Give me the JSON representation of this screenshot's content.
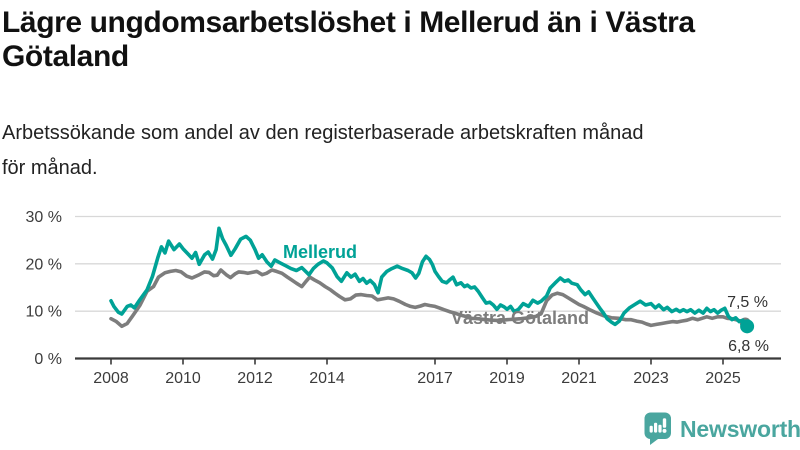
{
  "header": {
    "title": "Lägre ungdomsarbetslöshet i Mellerud än i Västra\nGötaland",
    "subtitle": "Arbetssökande som andel av den registerbaserade arbetskraften månad\nför månad."
  },
  "footer": {
    "brand": "Newsworthy",
    "brand_color": "#4aa69f"
  },
  "chart_data": {
    "type": "line",
    "title": "Lägre ungdomsarbetslöshet i Mellerud än i Västra Götaland",
    "subtitle": "Arbetssökande som andel av den registerbaserade arbetskraften månad för månad.",
    "xlabel": "",
    "ylabel": "",
    "xlim": [
      2007.9,
      2025.9
    ],
    "ylim": [
      0,
      30
    ],
    "grid": "horizontal",
    "y_ticks": [
      {
        "value": 0,
        "label": "0 %"
      },
      {
        "value": 10,
        "label": "10 %"
      },
      {
        "value": 20,
        "label": "20 %"
      },
      {
        "value": 30,
        "label": "30 %"
      }
    ],
    "x_ticks": [
      {
        "year": 2008,
        "label": "2008"
      },
      {
        "year": 2010,
        "label": "2010"
      },
      {
        "year": 2012,
        "label": "2012"
      },
      {
        "year": 2014,
        "label": "2014"
      },
      {
        "year": 2017,
        "label": "2017"
      },
      {
        "year": 2019,
        "label": "2019"
      },
      {
        "year": 2021,
        "label": "2021"
      },
      {
        "year": 2023,
        "label": "2023"
      },
      {
        "year": 2025,
        "label": "2025"
      }
    ],
    "series": [
      {
        "name": "Mellerud",
        "color": "#00a296",
        "end_label": "6,8 %",
        "end_value": 6.8,
        "end_dot": true,
        "points": [
          [
            2008.0,
            12.2
          ],
          [
            2008.08,
            11.0
          ],
          [
            2008.2,
            9.8
          ],
          [
            2008.3,
            9.4
          ],
          [
            2008.45,
            11.0
          ],
          [
            2008.55,
            11.3
          ],
          [
            2008.65,
            10.7
          ],
          [
            2008.8,
            12.4
          ],
          [
            2009.0,
            14.5
          ],
          [
            2009.15,
            17.3
          ],
          [
            2009.3,
            21.3
          ],
          [
            2009.4,
            23.6
          ],
          [
            2009.5,
            22.3
          ],
          [
            2009.6,
            24.8
          ],
          [
            2009.75,
            23.0
          ],
          [
            2009.9,
            24.2
          ],
          [
            2010.0,
            23.2
          ],
          [
            2010.15,
            22.0
          ],
          [
            2010.25,
            21.2
          ],
          [
            2010.35,
            22.4
          ],
          [
            2010.45,
            19.9
          ],
          [
            2010.6,
            21.9
          ],
          [
            2010.7,
            22.5
          ],
          [
            2010.82,
            21.0
          ],
          [
            2010.92,
            23.0
          ],
          [
            2011.0,
            27.5
          ],
          [
            2011.1,
            25.3
          ],
          [
            2011.2,
            23.9
          ],
          [
            2011.33,
            21.8
          ],
          [
            2011.45,
            23.2
          ],
          [
            2011.6,
            25.2
          ],
          [
            2011.75,
            25.8
          ],
          [
            2011.87,
            25.0
          ],
          [
            2012.0,
            23.0
          ],
          [
            2012.1,
            21.2
          ],
          [
            2012.2,
            21.9
          ],
          [
            2012.33,
            20.4
          ],
          [
            2012.45,
            19.5
          ],
          [
            2012.55,
            20.8
          ],
          [
            2012.7,
            20.2
          ],
          [
            2012.85,
            19.6
          ],
          [
            2013.0,
            19.0
          ],
          [
            2013.15,
            18.6
          ],
          [
            2013.3,
            19.2
          ],
          [
            2013.5,
            17.7
          ],
          [
            2013.62,
            19.0
          ],
          [
            2013.75,
            19.9
          ],
          [
            2013.9,
            20.6
          ],
          [
            2014.0,
            20.2
          ],
          [
            2014.15,
            19.1
          ],
          [
            2014.28,
            17.3
          ],
          [
            2014.4,
            16.3
          ],
          [
            2014.55,
            18.1
          ],
          [
            2014.67,
            17.2
          ],
          [
            2014.78,
            17.8
          ],
          [
            2014.9,
            16.3
          ],
          [
            2015.0,
            16.9
          ],
          [
            2015.1,
            15.9
          ],
          [
            2015.2,
            16.5
          ],
          [
            2015.32,
            15.6
          ],
          [
            2015.42,
            13.9
          ],
          [
            2015.52,
            17.2
          ],
          [
            2015.66,
            18.4
          ],
          [
            2015.8,
            19.0
          ],
          [
            2015.95,
            19.5
          ],
          [
            2016.1,
            19.0
          ],
          [
            2016.25,
            18.6
          ],
          [
            2016.36,
            18.1
          ],
          [
            2016.46,
            17.0
          ],
          [
            2016.55,
            18.0
          ],
          [
            2016.65,
            20.4
          ],
          [
            2016.75,
            21.6
          ],
          [
            2016.85,
            20.9
          ],
          [
            2016.93,
            19.8
          ],
          [
            2017.0,
            18.4
          ],
          [
            2017.1,
            17.3
          ],
          [
            2017.2,
            16.3
          ],
          [
            2017.32,
            16.0
          ],
          [
            2017.42,
            16.7
          ],
          [
            2017.5,
            17.2
          ],
          [
            2017.6,
            15.6
          ],
          [
            2017.72,
            16.0
          ],
          [
            2017.82,
            15.2
          ],
          [
            2017.9,
            15.5
          ],
          [
            2018.0,
            14.9
          ],
          [
            2018.1,
            15.1
          ],
          [
            2018.2,
            14.2
          ],
          [
            2018.32,
            12.8
          ],
          [
            2018.42,
            11.7
          ],
          [
            2018.52,
            11.9
          ],
          [
            2018.62,
            11.3
          ],
          [
            2018.72,
            10.4
          ],
          [
            2018.82,
            11.3
          ],
          [
            2018.92,
            10.9
          ],
          [
            2019.0,
            10.4
          ],
          [
            2019.1,
            11.0
          ],
          [
            2019.2,
            9.9
          ],
          [
            2019.32,
            10.4
          ],
          [
            2019.45,
            11.6
          ],
          [
            2019.6,
            11.0
          ],
          [
            2019.72,
            12.3
          ],
          [
            2019.85,
            11.7
          ],
          [
            2019.95,
            12.1
          ],
          [
            2020.1,
            13.2
          ],
          [
            2020.2,
            14.9
          ],
          [
            2020.33,
            15.9
          ],
          [
            2020.48,
            17.0
          ],
          [
            2020.6,
            16.3
          ],
          [
            2020.7,
            16.6
          ],
          [
            2020.8,
            15.9
          ],
          [
            2020.95,
            15.6
          ],
          [
            2021.05,
            14.5
          ],
          [
            2021.17,
            13.5
          ],
          [
            2021.27,
            14.1
          ],
          [
            2021.38,
            12.8
          ],
          [
            2021.48,
            11.7
          ],
          [
            2021.58,
            10.6
          ],
          [
            2021.68,
            9.6
          ],
          [
            2021.78,
            8.4
          ],
          [
            2021.9,
            7.7
          ],
          [
            2022.0,
            7.2
          ],
          [
            2022.12,
            7.9
          ],
          [
            2022.25,
            9.6
          ],
          [
            2022.4,
            10.7
          ],
          [
            2022.55,
            11.4
          ],
          [
            2022.7,
            12.1
          ],
          [
            2022.85,
            11.3
          ],
          [
            2023.0,
            11.6
          ],
          [
            2023.12,
            10.7
          ],
          [
            2023.22,
            11.3
          ],
          [
            2023.35,
            10.3
          ],
          [
            2023.45,
            10.8
          ],
          [
            2023.58,
            9.9
          ],
          [
            2023.7,
            10.4
          ],
          [
            2023.8,
            9.9
          ],
          [
            2023.9,
            10.3
          ],
          [
            2024.0,
            9.9
          ],
          [
            2024.1,
            10.3
          ],
          [
            2024.22,
            9.6
          ],
          [
            2024.33,
            10.2
          ],
          [
            2024.45,
            9.6
          ],
          [
            2024.55,
            10.6
          ],
          [
            2024.65,
            9.9
          ],
          [
            2024.75,
            10.3
          ],
          [
            2024.85,
            9.6
          ],
          [
            2024.95,
            10.2
          ],
          [
            2025.05,
            10.6
          ],
          [
            2025.15,
            8.9
          ],
          [
            2025.25,
            8.2
          ],
          [
            2025.35,
            8.6
          ],
          [
            2025.45,
            7.8
          ],
          [
            2025.55,
            8.1
          ],
          [
            2025.67,
            6.8
          ]
        ]
      },
      {
        "name": "Västra Götaland",
        "color": "#7d7d7d",
        "end_label": "7,5 %",
        "end_value": 7.5,
        "end_dot": true,
        "points": [
          [
            2008.0,
            8.4
          ],
          [
            2008.15,
            7.8
          ],
          [
            2008.3,
            6.8
          ],
          [
            2008.45,
            7.4
          ],
          [
            2008.6,
            9.0
          ],
          [
            2008.8,
            11.2
          ],
          [
            2009.0,
            14.2
          ],
          [
            2009.18,
            15.2
          ],
          [
            2009.32,
            17.2
          ],
          [
            2009.5,
            18.1
          ],
          [
            2009.65,
            18.4
          ],
          [
            2009.8,
            18.6
          ],
          [
            2009.95,
            18.3
          ],
          [
            2010.1,
            17.4
          ],
          [
            2010.25,
            17.0
          ],
          [
            2010.45,
            17.7
          ],
          [
            2010.6,
            18.3
          ],
          [
            2010.72,
            18.2
          ],
          [
            2010.85,
            17.5
          ],
          [
            2010.95,
            17.6
          ],
          [
            2011.05,
            18.7
          ],
          [
            2011.2,
            17.7
          ],
          [
            2011.32,
            17.1
          ],
          [
            2011.45,
            17.9
          ],
          [
            2011.55,
            18.3
          ],
          [
            2011.68,
            18.2
          ],
          [
            2011.8,
            18.0
          ],
          [
            2011.92,
            18.2
          ],
          [
            2012.05,
            18.4
          ],
          [
            2012.2,
            17.7
          ],
          [
            2012.32,
            18.0
          ],
          [
            2012.47,
            18.7
          ],
          [
            2012.6,
            18.4
          ],
          [
            2012.75,
            18.0
          ],
          [
            2012.9,
            17.2
          ],
          [
            2013.0,
            16.7
          ],
          [
            2013.15,
            15.9
          ],
          [
            2013.3,
            15.2
          ],
          [
            2013.42,
            16.3
          ],
          [
            2013.52,
            17.2
          ],
          [
            2013.65,
            16.6
          ],
          [
            2013.8,
            16.0
          ],
          [
            2013.95,
            15.2
          ],
          [
            2014.1,
            14.5
          ],
          [
            2014.22,
            13.8
          ],
          [
            2014.35,
            13.1
          ],
          [
            2014.5,
            12.4
          ],
          [
            2014.65,
            12.6
          ],
          [
            2014.8,
            13.4
          ],
          [
            2014.95,
            13.5
          ],
          [
            2015.1,
            13.3
          ],
          [
            2015.25,
            13.2
          ],
          [
            2015.4,
            12.4
          ],
          [
            2015.55,
            12.6
          ],
          [
            2015.7,
            12.8
          ],
          [
            2015.85,
            12.6
          ],
          [
            2016.0,
            12.1
          ],
          [
            2016.18,
            11.4
          ],
          [
            2016.32,
            11.0
          ],
          [
            2016.45,
            10.8
          ],
          [
            2016.6,
            11.1
          ],
          [
            2016.72,
            11.4
          ],
          [
            2016.85,
            11.2
          ],
          [
            2017.0,
            11.0
          ],
          [
            2017.12,
            10.7
          ],
          [
            2017.25,
            10.3
          ],
          [
            2017.4,
            9.9
          ],
          [
            2017.55,
            9.6
          ],
          [
            2017.7,
            9.2
          ],
          [
            2017.85,
            8.9
          ],
          [
            2018.0,
            8.5
          ],
          [
            2018.2,
            8.4
          ],
          [
            2018.4,
            8.2
          ],
          [
            2018.6,
            8.1
          ],
          [
            2018.8,
            8.0
          ],
          [
            2019.0,
            8.2
          ],
          [
            2019.2,
            8.3
          ],
          [
            2019.4,
            8.4
          ],
          [
            2019.6,
            8.6
          ],
          [
            2019.8,
            8.9
          ],
          [
            2019.95,
            9.5
          ],
          [
            2020.1,
            12.2
          ],
          [
            2020.25,
            13.4
          ],
          [
            2020.4,
            13.8
          ],
          [
            2020.55,
            13.5
          ],
          [
            2020.7,
            12.8
          ],
          [
            2020.85,
            12.1
          ],
          [
            2021.0,
            11.4
          ],
          [
            2021.12,
            11.0
          ],
          [
            2021.3,
            10.3
          ],
          [
            2021.5,
            9.6
          ],
          [
            2021.7,
            9.0
          ],
          [
            2021.9,
            8.6
          ],
          [
            2022.1,
            8.5
          ],
          [
            2022.3,
            8.2
          ],
          [
            2022.45,
            8.2
          ],
          [
            2022.6,
            7.9
          ],
          [
            2022.75,
            7.7
          ],
          [
            2022.87,
            7.3
          ],
          [
            2023.0,
            7.0
          ],
          [
            2023.15,
            7.2
          ],
          [
            2023.3,
            7.4
          ],
          [
            2023.45,
            7.6
          ],
          [
            2023.6,
            7.8
          ],
          [
            2023.72,
            7.7
          ],
          [
            2023.85,
            7.9
          ],
          [
            2024.0,
            8.1
          ],
          [
            2024.15,
            8.5
          ],
          [
            2024.3,
            8.2
          ],
          [
            2024.42,
            8.5
          ],
          [
            2024.55,
            8.8
          ],
          [
            2024.7,
            8.5
          ],
          [
            2024.85,
            8.8
          ],
          [
            2025.0,
            8.8
          ],
          [
            2025.12,
            8.5
          ],
          [
            2025.25,
            8.4
          ],
          [
            2025.4,
            8.1
          ],
          [
            2025.55,
            7.8
          ],
          [
            2025.62,
            7.5
          ]
        ]
      }
    ],
    "legend_position": "inline-labels",
    "colors": {
      "grid": "#d8d8d8",
      "axis": "#3a3a3a",
      "text": "#3c3c3c"
    }
  }
}
